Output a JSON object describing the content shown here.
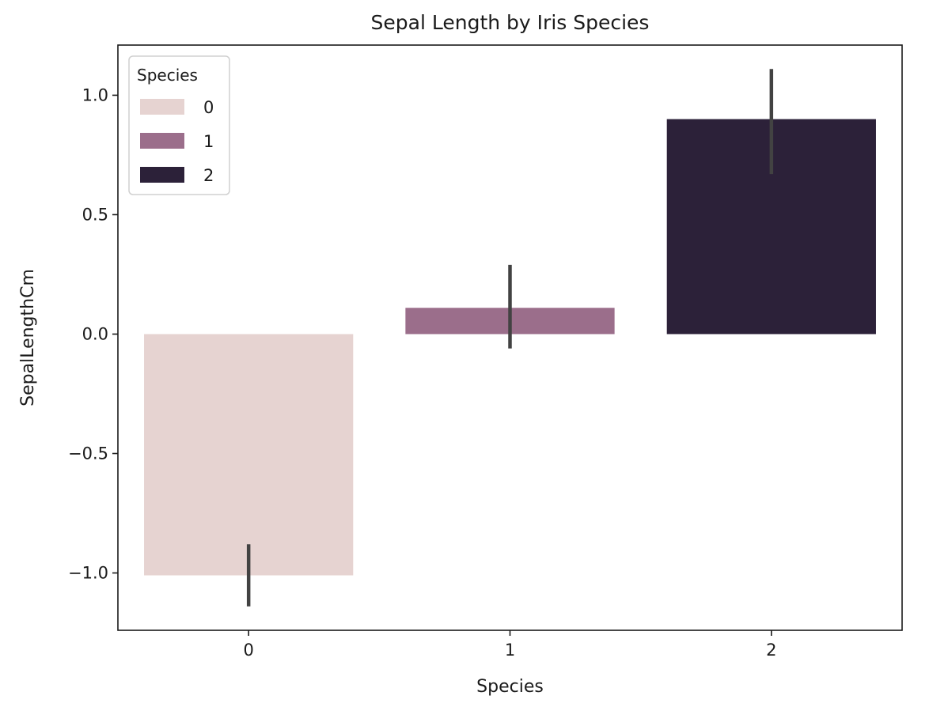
{
  "chart_data": {
    "type": "bar",
    "title": "Sepal Length by Iris Species",
    "xlabel": "Species",
    "ylabel": "SepalLengthCm",
    "categories": [
      "0",
      "1",
      "2"
    ],
    "values": [
      -1.01,
      0.11,
      0.9
    ],
    "error_bars": [
      {
        "low": -1.14,
        "high": -0.88
      },
      {
        "low": -0.06,
        "high": 0.29
      },
      {
        "low": 0.67,
        "high": 1.11
      }
    ],
    "colors": [
      "#e6d3d1",
      "#9b6e8b",
      "#2c2139"
    ],
    "error_color": "#424242",
    "ylim": [
      -1.24,
      1.21
    ],
    "yticks": [
      -1.0,
      -0.5,
      0.0,
      0.5,
      1.0
    ],
    "ytick_labels": [
      "−1.0",
      "−0.5",
      "0.0",
      "0.5",
      "1.0"
    ],
    "grid": false,
    "legend": {
      "title": "Species",
      "placement": "upper-left",
      "entries": [
        "0",
        "1",
        "2"
      ]
    }
  }
}
